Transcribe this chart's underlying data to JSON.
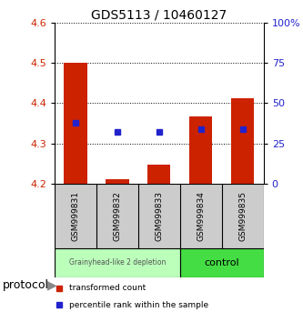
{
  "title": "GDS5113 / 10460127",
  "samples": [
    "GSM999831",
    "GSM999832",
    "GSM999833",
    "GSM999834",
    "GSM999835"
  ],
  "bar_bottom": 4.2,
  "bar_tops": [
    4.5,
    4.212,
    4.247,
    4.368,
    4.413
  ],
  "blue_squares": [
    4.352,
    4.328,
    4.328,
    4.336,
    4.336
  ],
  "ylim_left": [
    4.2,
    4.6
  ],
  "ylim_right": [
    0,
    100
  ],
  "yticks_left": [
    4.2,
    4.3,
    4.4,
    4.5,
    4.6
  ],
  "yticks_right": [
    0,
    25,
    50,
    75,
    100
  ],
  "bar_color": "#cc2200",
  "blue_color": "#2222cc",
  "group1_indices": [
    0,
    1,
    2
  ],
  "group2_indices": [
    3,
    4
  ],
  "group1_label": "Grainyhead-like 2 depletion",
  "group2_label": "control",
  "group1_color": "#bbffbb",
  "group2_color": "#44dd44",
  "protocol_label": "protocol",
  "legend_red": "transformed count",
  "legend_blue": "percentile rank within the sample",
  "sample_box_color": "#cccccc",
  "bar_width": 0.55,
  "title_fontsize": 10,
  "tick_fontsize": 8,
  "label_fontsize": 6.5,
  "protocol_fontsize": 9
}
